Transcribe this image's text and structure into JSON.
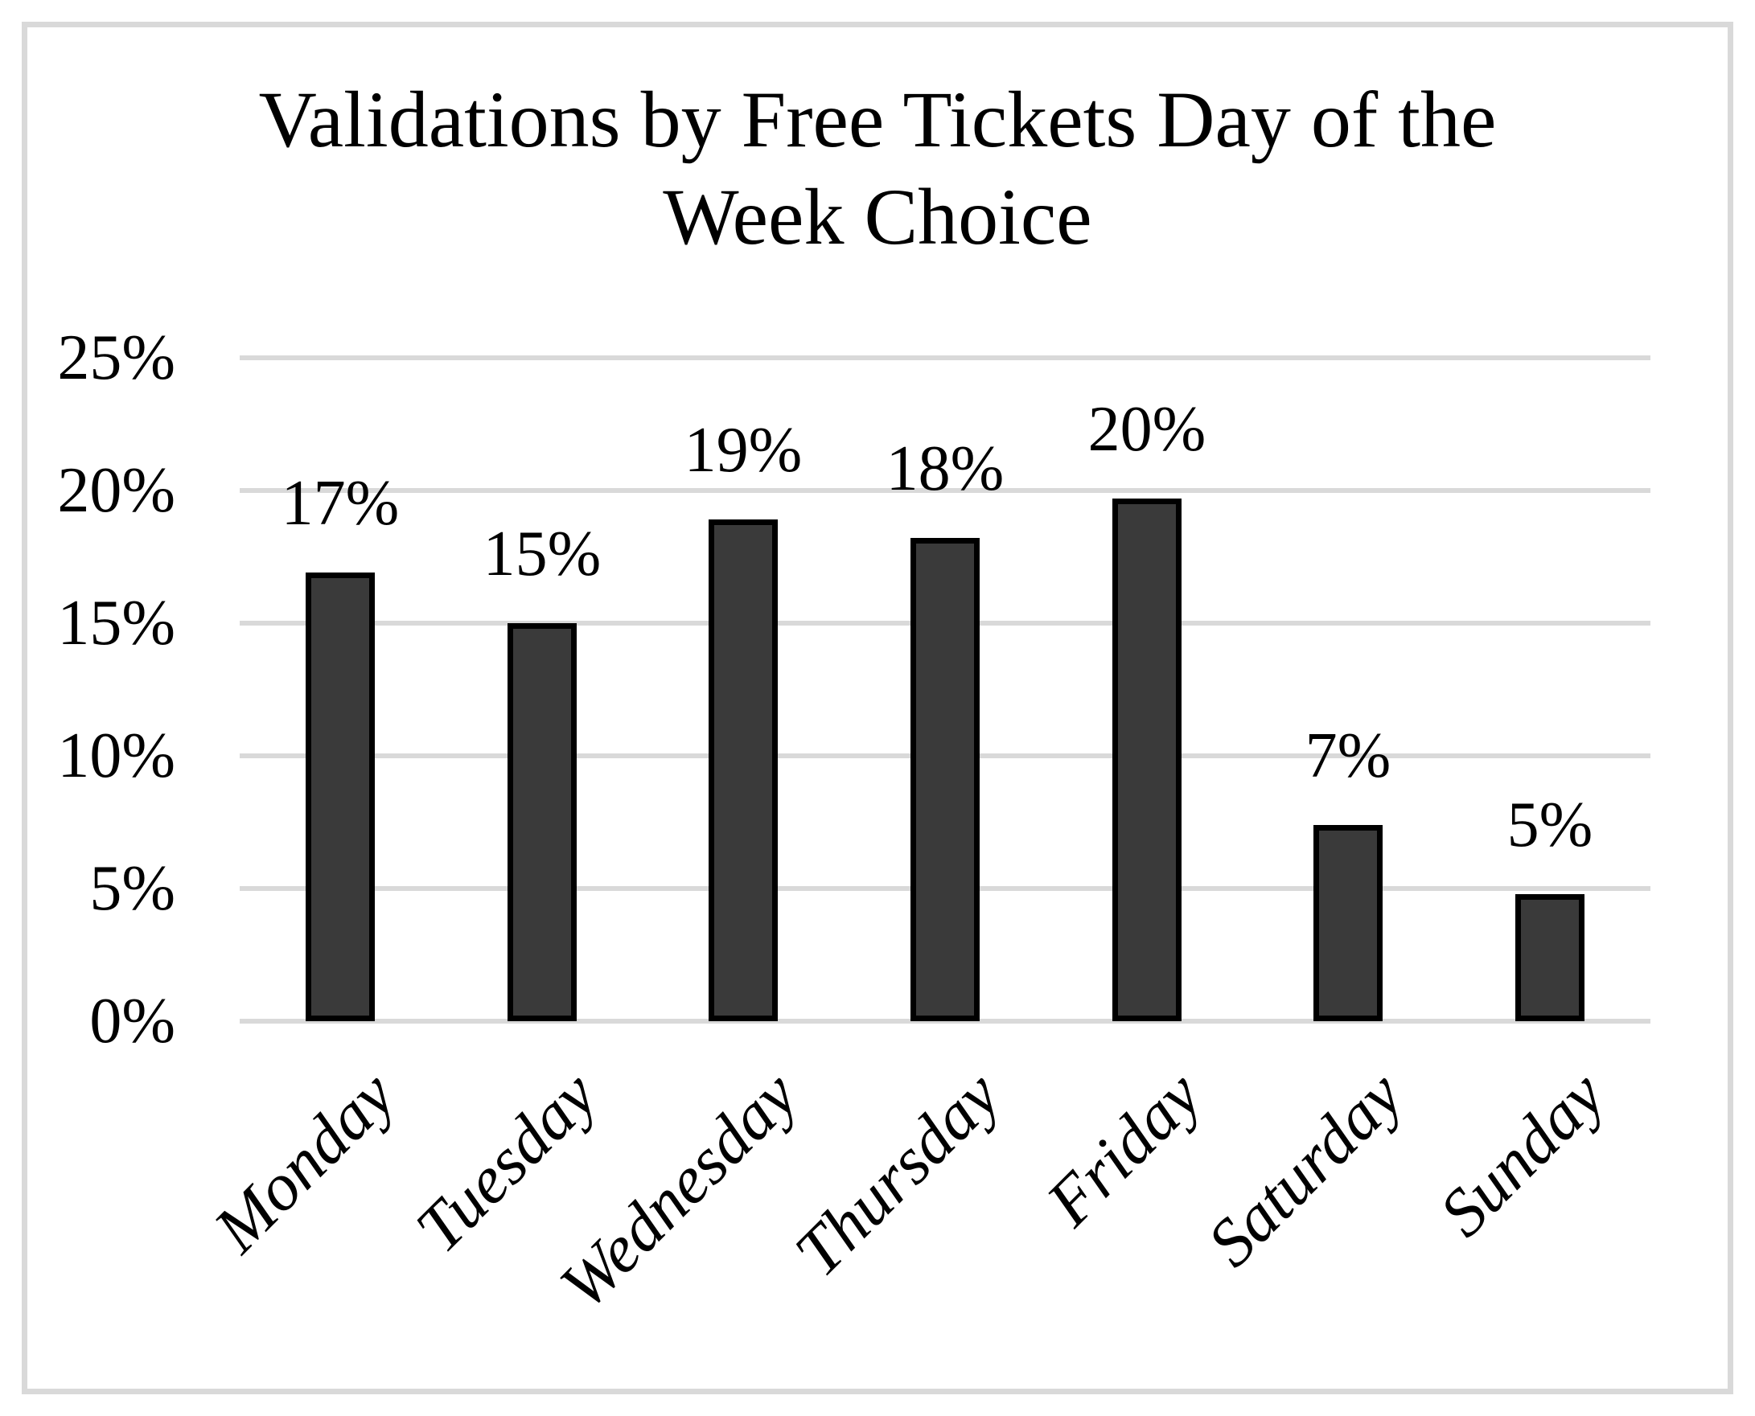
{
  "chart_data": {
    "type": "bar",
    "title": "Validations by Free Tickets Day of the Week Choice",
    "title_lines": [
      "Validations by Free Tickets Day of the",
      "Week Choice"
    ],
    "categories": [
      "Monday",
      "Tuesday",
      "Wednesday",
      "Thursday",
      "Friday",
      "Saturday",
      "Sunday"
    ],
    "values": [
      17,
      15,
      19,
      18,
      20,
      7,
      5
    ],
    "data_labels": [
      "17%",
      "15%",
      "19%",
      "18%",
      "20%",
      "7%",
      "5%"
    ],
    "bar_heights_pct": [
      16.9,
      15.0,
      18.9,
      18.2,
      19.7,
      7.4,
      4.8
    ],
    "xlabel": "",
    "ylabel": "",
    "y_ticks": [
      "0%",
      "5%",
      "10%",
      "15%",
      "20%",
      "25%"
    ],
    "y_tick_values": [
      0,
      5,
      10,
      15,
      20,
      25
    ],
    "ylim": [
      0,
      25
    ],
    "grid": "horizontal",
    "legend": "none",
    "bar_color": "#3a3a3a",
    "bar_border_color": "#000000",
    "gridline_color": "#d9d9d9",
    "frame_color": "#d9d9d9",
    "text_color": "#000000",
    "background_color": "#ffffff"
  }
}
